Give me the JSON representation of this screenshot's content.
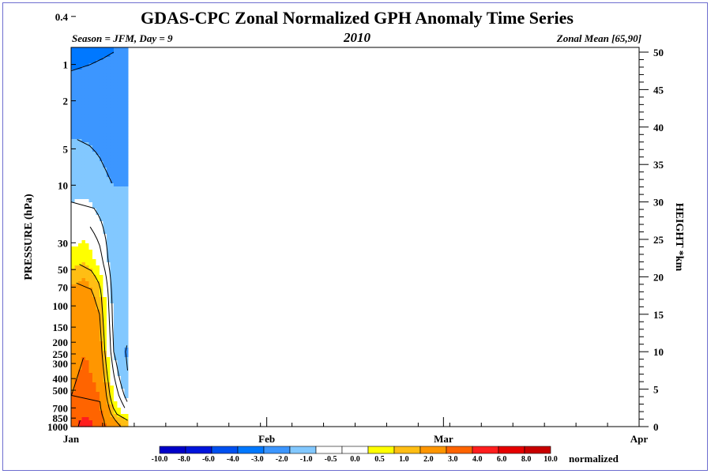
{
  "chart_data": {
    "type": "heatmap",
    "title": "GDAS-CPC Zonal Normalized GPH Anomaly Time Series",
    "subtitle_left": "Season = JFM, Day =   9",
    "subtitle_center": "2010",
    "subtitle_right": "Zonal Mean [65,90]",
    "left_axis": {
      "label": "PRESSURE (hPa)",
      "ticks": [
        "0.4",
        "1",
        "2",
        "5",
        "10",
        "30",
        "50",
        "70",
        "100",
        "150",
        "200",
        "250",
        "300",
        "400",
        "500",
        "700",
        "850",
        "1000"
      ]
    },
    "right_axis": {
      "label": "HEIGHT *km",
      "ticks": [
        "0",
        "5",
        "10",
        "15",
        "20",
        "25",
        "30",
        "35",
        "40",
        "45",
        "50"
      ],
      "ylim": [
        0,
        50
      ]
    },
    "x_axis": {
      "labels": [
        "Jan",
        "Feb",
        "Mar",
        "Apr"
      ],
      "days_shown": 9
    },
    "colorbar": {
      "unit_label": "normalized",
      "levels": [
        "-10.0",
        "-8.0",
        "-6.0",
        "-4.0",
        "-3.0",
        "-2.0",
        "-1.0",
        "-0.5",
        "0.0",
        "0.5",
        "1.0",
        "2.0",
        "3.0",
        "4.0",
        "6.0",
        "8.0",
        "10.0"
      ],
      "colors": [
        "#0000c8",
        "#0014dc",
        "#0050f0",
        "#0078ff",
        "#3c96ff",
        "#82c8ff",
        "#ffffff",
        "#ffffff",
        "#ffff00",
        "#ffbe14",
        "#ff9600",
        "#ff6400",
        "#ff1e1e",
        "#e60000",
        "#c80000"
      ]
    },
    "anomaly_profiles": {
      "height_km": [
        0.5,
        2,
        4,
        7,
        10,
        14,
        18,
        20,
        22,
        25,
        28,
        32,
        36,
        40,
        45,
        50
      ],
      "by_day": [
        {
          "day": 1,
          "values": [
            2.6,
            2.3,
            2.0,
            1.8,
            1.6,
            1.4,
            1.1,
            0.8,
            0.3,
            -0.2,
            -0.6,
            -1.4,
            -1.8,
            -2.1,
            -2.4,
            -3.6
          ]
        },
        {
          "day": 3,
          "values": [
            3.4,
            2.8,
            2.4,
            2.2,
            2.0,
            1.7,
            1.3,
            1.0,
            0.5,
            0.0,
            -0.6,
            -1.2,
            -1.8,
            -2.2,
            -2.5,
            -3.3
          ]
        },
        {
          "day": 5,
          "values": [
            2.5,
            2.2,
            2.0,
            1.7,
            1.4,
            1.1,
            0.7,
            0.3,
            -0.2,
            -0.6,
            -1.0,
            -1.5,
            -2.0,
            -2.3,
            -2.6,
            -3.1
          ]
        },
        {
          "day": 7,
          "values": [
            1.2,
            0.6,
            0.0,
            -0.5,
            -1.0,
            -1.2,
            -1.3,
            -1.4,
            -1.5,
            -1.5,
            -1.6,
            -2.0,
            -2.5,
            -2.6,
            -2.7,
            -3.0
          ]
        },
        {
          "day": 9,
          "values": [
            0.8,
            -0.6,
            -1.3,
            -2.0,
            -2.2,
            -1.6,
            -1.0,
            -1.1,
            -1.2,
            -1.3,
            -1.5,
            -2.0,
            -2.1,
            -2.2,
            -2.3,
            -2.4
          ]
        }
      ]
    }
  }
}
